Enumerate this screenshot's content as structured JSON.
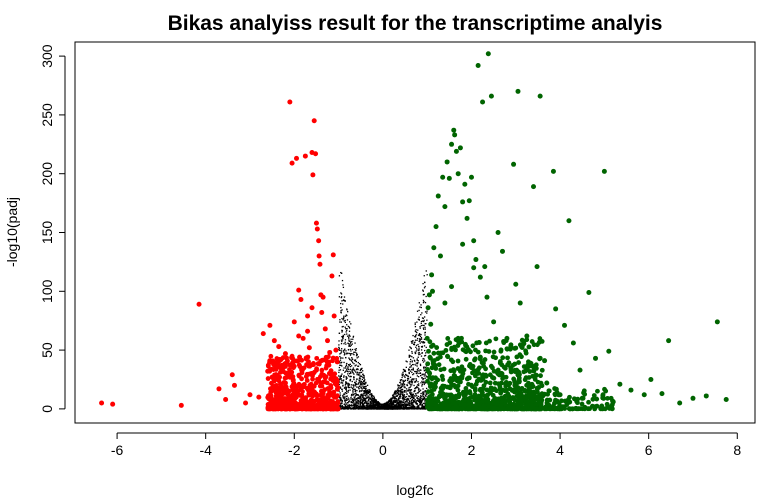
{
  "chart_data": {
    "type": "scatter",
    "title": "Bikas analyiss result for the transcriptime analyis",
    "xlabel": "log2fc",
    "ylabel": "-log10(padj",
    "xlim": [
      -6.95,
      8.4
    ],
    "ylim": [
      -12,
      312
    ],
    "x_ticks": [
      -6,
      -4,
      -2,
      0,
      2,
      4,
      6,
      8
    ],
    "y_ticks": [
      0,
      50,
      100,
      150,
      200,
      250,
      300
    ],
    "x_tick_labels": [
      "-6",
      "-4",
      "-2",
      "0",
      "2",
      "4",
      "6",
      "8"
    ],
    "y_tick_labels": [
      "0",
      "50",
      "100",
      "150",
      "200",
      "250",
      "300"
    ],
    "grid": false,
    "legend": "none",
    "colors": {
      "down": "#ff0000",
      "ns": "#000000",
      "up": "#006400"
    },
    "series": [
      {
        "key": "down",
        "points": [
          [
            -6.35,
            5
          ],
          [
            -6.1,
            4
          ],
          [
            -4.55,
            3
          ],
          [
            -4.15,
            89
          ],
          [
            -3.7,
            17
          ],
          [
            -3.55,
            8
          ],
          [
            -3.4,
            29
          ],
          [
            -3.35,
            20
          ],
          [
            -3.1,
            5
          ],
          [
            -3.0,
            12
          ],
          [
            -2.8,
            10
          ],
          [
            -2.7,
            64
          ],
          [
            -2.6,
            32
          ],
          [
            -2.55,
            71
          ],
          [
            -2.5,
            27
          ],
          [
            -2.45,
            58
          ],
          [
            -2.4,
            18
          ],
          [
            -2.3,
            42
          ],
          [
            -2.25,
            35
          ],
          [
            -2.2,
            22
          ],
          [
            -2.1,
            261
          ],
          [
            -2.05,
            209
          ],
          [
            -2.0,
            74
          ],
          [
            -1.95,
            213
          ],
          [
            -1.9,
            101
          ],
          [
            -1.88,
            44
          ],
          [
            -1.85,
            93
          ],
          [
            -1.8,
            60
          ],
          [
            -1.75,
            215
          ],
          [
            -1.7,
            79
          ],
          [
            -1.66,
            52
          ],
          [
            -1.6,
            218
          ],
          [
            -1.58,
            199
          ],
          [
            -1.55,
            245
          ],
          [
            -1.52,
            217
          ],
          [
            -1.5,
            158
          ],
          [
            -1.48,
            153
          ],
          [
            -1.45,
            143
          ],
          [
            -1.44,
            130
          ],
          [
            -1.42,
            123
          ],
          [
            -1.4,
            97
          ],
          [
            -1.38,
            82
          ],
          [
            -1.35,
            95
          ],
          [
            -1.3,
            68
          ],
          [
            -1.25,
            58
          ],
          [
            -1.2,
            48
          ],
          [
            -1.15,
            113
          ],
          [
            -1.12,
            131
          ],
          [
            -1.1,
            79
          ],
          [
            -1.06,
            50
          ],
          [
            -1.03,
            40
          ],
          [
            -1.6,
            86
          ],
          [
            -1.7,
            66
          ],
          [
            -1.9,
            62
          ],
          [
            -2.2,
            47
          ],
          [
            -2.35,
            53
          ]
        ]
      },
      {
        "key": "up",
        "points": [
          [
            1.0,
            60
          ],
          [
            1.02,
            86
          ],
          [
            1.05,
            97
          ],
          [
            1.08,
            72
          ],
          [
            1.1,
            114
          ],
          [
            1.12,
            100
          ],
          [
            1.15,
            137
          ],
          [
            1.2,
            155
          ],
          [
            1.25,
            181
          ],
          [
            1.3,
            130
          ],
          [
            1.35,
            197
          ],
          [
            1.4,
            172
          ],
          [
            1.45,
            210
          ],
          [
            1.5,
            196
          ],
          [
            1.55,
            225
          ],
          [
            1.6,
            237
          ],
          [
            1.62,
            233
          ],
          [
            1.66,
            219
          ],
          [
            1.7,
            200
          ],
          [
            1.75,
            222
          ],
          [
            1.8,
            176
          ],
          [
            1.85,
            191
          ],
          [
            1.9,
            162
          ],
          [
            1.95,
            177
          ],
          [
            2.0,
            197
          ],
          [
            2.05,
            143
          ],
          [
            2.1,
            127
          ],
          [
            2.15,
            292
          ],
          [
            2.2,
            112
          ],
          [
            2.25,
            261
          ],
          [
            2.3,
            121
          ],
          [
            2.35,
            95
          ],
          [
            2.38,
            302
          ],
          [
            2.45,
            266
          ],
          [
            2.5,
            74
          ],
          [
            2.6,
            150
          ],
          [
            2.7,
            134
          ],
          [
            2.8,
            60
          ],
          [
            2.95,
            208
          ],
          [
            3.0,
            106
          ],
          [
            3.05,
            270
          ],
          [
            3.1,
            90
          ],
          [
            3.25,
            62
          ],
          [
            3.4,
            189
          ],
          [
            3.48,
            121
          ],
          [
            3.55,
            266
          ],
          [
            3.65,
            41
          ],
          [
            3.85,
            202
          ],
          [
            3.9,
            85
          ],
          [
            4.1,
            71
          ],
          [
            4.2,
            160
          ],
          [
            4.3,
            56
          ],
          [
            4.45,
            33
          ],
          [
            4.65,
            99
          ],
          [
            4.8,
            43
          ],
          [
            5.0,
            202
          ],
          [
            5.1,
            49
          ],
          [
            5.35,
            21
          ],
          [
            5.6,
            16
          ],
          [
            5.9,
            12
          ],
          [
            6.05,
            25
          ],
          [
            6.3,
            13
          ],
          [
            6.45,
            58
          ],
          [
            6.7,
            5
          ],
          [
            7.0,
            9
          ],
          [
            7.3,
            11
          ],
          [
            7.55,
            74
          ],
          [
            7.75,
            8
          ],
          [
            1.7,
            60
          ],
          [
            2.2,
            44
          ],
          [
            2.6,
            30
          ],
          [
            3.3,
            18
          ],
          [
            3.7,
            22
          ],
          [
            4.0,
            12
          ],
          [
            4.5,
            9
          ],
          [
            5.2,
            6
          ],
          [
            2.9,
            52
          ],
          [
            3.4,
            36
          ],
          [
            1.4,
            90
          ],
          [
            1.55,
            104
          ],
          [
            1.8,
            140
          ],
          [
            2.05,
            120
          ]
        ]
      }
    ]
  }
}
